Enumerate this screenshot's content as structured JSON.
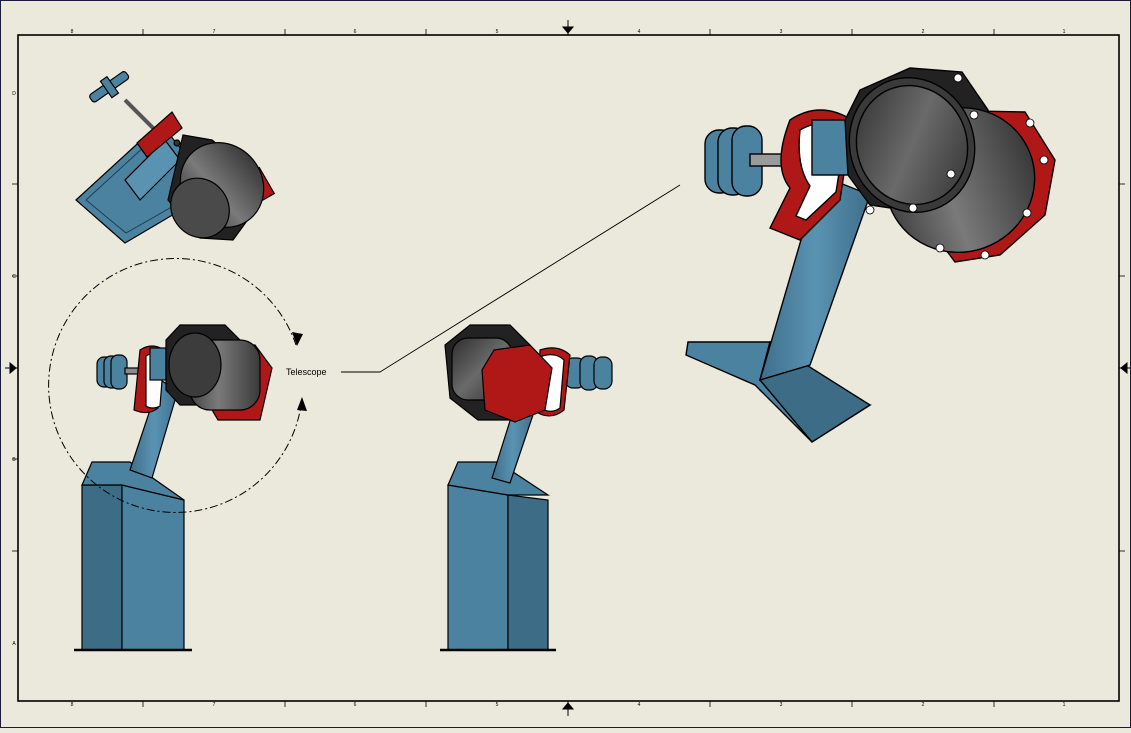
{
  "sheet": {
    "top_zone_labels": [
      "8",
      "7",
      "6",
      "5",
      "4",
      "3",
      "2",
      "1"
    ],
    "bottom_zone_labels": [
      "8",
      "7",
      "6",
      "5",
      "4",
      "3",
      "2",
      "1"
    ],
    "left_zone_labels": [
      "D",
      "C",
      "B",
      "A"
    ],
    "colors": {
      "paper": "#ebe9dc",
      "steel_blue": "#4a82a0",
      "steel_blue_dark": "#3c6c86",
      "red": "#b01818",
      "dark_gray": "#3a3a3a",
      "white": "#ffffff"
    }
  },
  "callout": {
    "label": "Telescope"
  }
}
